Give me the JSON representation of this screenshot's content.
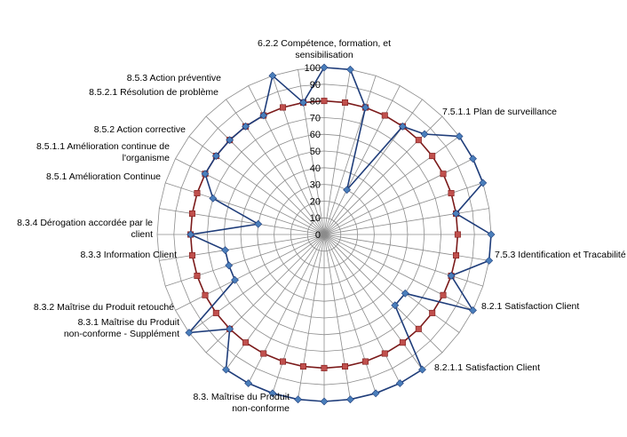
{
  "chart_data": {
    "type": "radar",
    "title": "",
    "range": [
      0,
      100
    ],
    "tick_step": 10,
    "ticks": [
      "0",
      "10",
      "20",
      "30",
      "40",
      "50",
      "60",
      "70",
      "80",
      "90",
      "100"
    ],
    "grid": true,
    "legend": "none",
    "categories": [
      "6.2.2 Compétence, formation, et sensibilisation",
      "",
      "",
      "",
      "",
      "7.5.1.1 Plan de surveillance",
      "",
      "",
      "",
      "",
      "",
      "7.5.3 Identification et Tracabilité",
      "",
      "8.2.1 Satisfaction Client",
      "",
      "",
      "8.2.1.1 Satisfaction Client",
      "",
      "",
      "",
      "",
      "",
      "",
      "",
      "",
      "",
      "8.3. Maîtrise du Produit non-conforme",
      "",
      "8.3.1 Maîtrise du Produit non-conforme - Supplément",
      "8.3.2 Maîtrise du Produit retouché",
      "8.3.3 Information Client",
      "8.3.4 Dérogation accordée par le client",
      "",
      "",
      "8.5.1 Amélioration Continue",
      "8.5.1.1 Amélioration continue de l'organisme",
      "8.5.2 Action corrective",
      "",
      "8.5.2.1 Résolution de problème",
      "8.5.3 Action préventive"
    ],
    "series": [
      {
        "name": "",
        "color": "#1f3d7a",
        "marker_color": "#4a7ebb",
        "marker": "diamond",
        "values": [
          100,
          100,
          80,
          30,
          80,
          85,
          100,
          100,
          100,
          80,
          100,
          100,
          80,
          100,
          60,
          60,
          100,
          100,
          100,
          100,
          100,
          100,
          100,
          100,
          100,
          80,
          100,
          60,
          60,
          60,
          80,
          40,
          70,
          80,
          80,
          80,
          80,
          80,
          100,
          80
        ]
      },
      {
        "name": "",
        "color": "#7b1a1a",
        "marker_color": "#c0504d",
        "marker": "square",
        "values": [
          80,
          80,
          80,
          80,
          80,
          80,
          80,
          80,
          80,
          80,
          80,
          80,
          80,
          80,
          80,
          80,
          80,
          80,
          80,
          80,
          80,
          80,
          80,
          80,
          80,
          80,
          80,
          80,
          80,
          80,
          80,
          80,
          80,
          80,
          80,
          80,
          80,
          80,
          80,
          80
        ]
      }
    ]
  }
}
